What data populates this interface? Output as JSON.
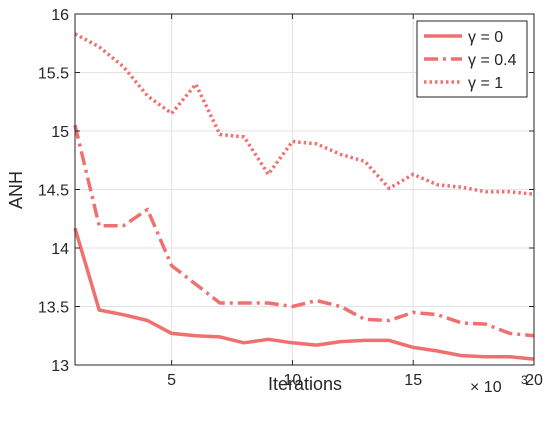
{
  "chart_data": {
    "type": "line",
    "xlabel": "Iterations",
    "ylabel": "ANH",
    "x_multiplier_label": "× 10",
    "x_multiplier_exponent": "3",
    "xlim": [
      1,
      20
    ],
    "ylim": [
      13,
      16
    ],
    "xticks": [
      5,
      10,
      15,
      20
    ],
    "yticks": [
      13,
      13.5,
      14,
      14.5,
      15,
      15.5,
      16
    ],
    "ytick_labels": [
      "13",
      "13.5",
      "14",
      "14.5",
      "15",
      "15.5",
      "16"
    ],
    "grid": true,
    "legend_position": "top-right",
    "line_color": "#f07070",
    "x": [
      1,
      2,
      3,
      4,
      5,
      6,
      7,
      8,
      9,
      10,
      11,
      12,
      13,
      14,
      15,
      16,
      17,
      18,
      19,
      20
    ],
    "series": [
      {
        "name": "γ = 0",
        "style": "solid",
        "values": [
          14.17,
          13.47,
          13.43,
          13.38,
          13.27,
          13.25,
          13.24,
          13.19,
          13.22,
          13.19,
          13.17,
          13.2,
          13.21,
          13.21,
          13.15,
          13.12,
          13.08,
          13.07,
          13.07,
          13.05
        ]
      },
      {
        "name": "γ = 0.4",
        "style": "dashdot",
        "values": [
          15.05,
          14.19,
          14.19,
          14.33,
          13.85,
          13.69,
          13.53,
          13.53,
          13.53,
          13.5,
          13.55,
          13.5,
          13.39,
          13.38,
          13.45,
          13.43,
          13.36,
          13.35,
          13.27,
          13.25
        ]
      },
      {
        "name": "γ = 1",
        "style": "dotted",
        "values": [
          15.83,
          15.72,
          15.55,
          15.3,
          15.15,
          15.4,
          14.97,
          14.95,
          14.63,
          14.91,
          14.89,
          14.8,
          14.74,
          14.51,
          14.63,
          14.54,
          14.52,
          14.48,
          14.48,
          14.46
        ]
      }
    ]
  }
}
